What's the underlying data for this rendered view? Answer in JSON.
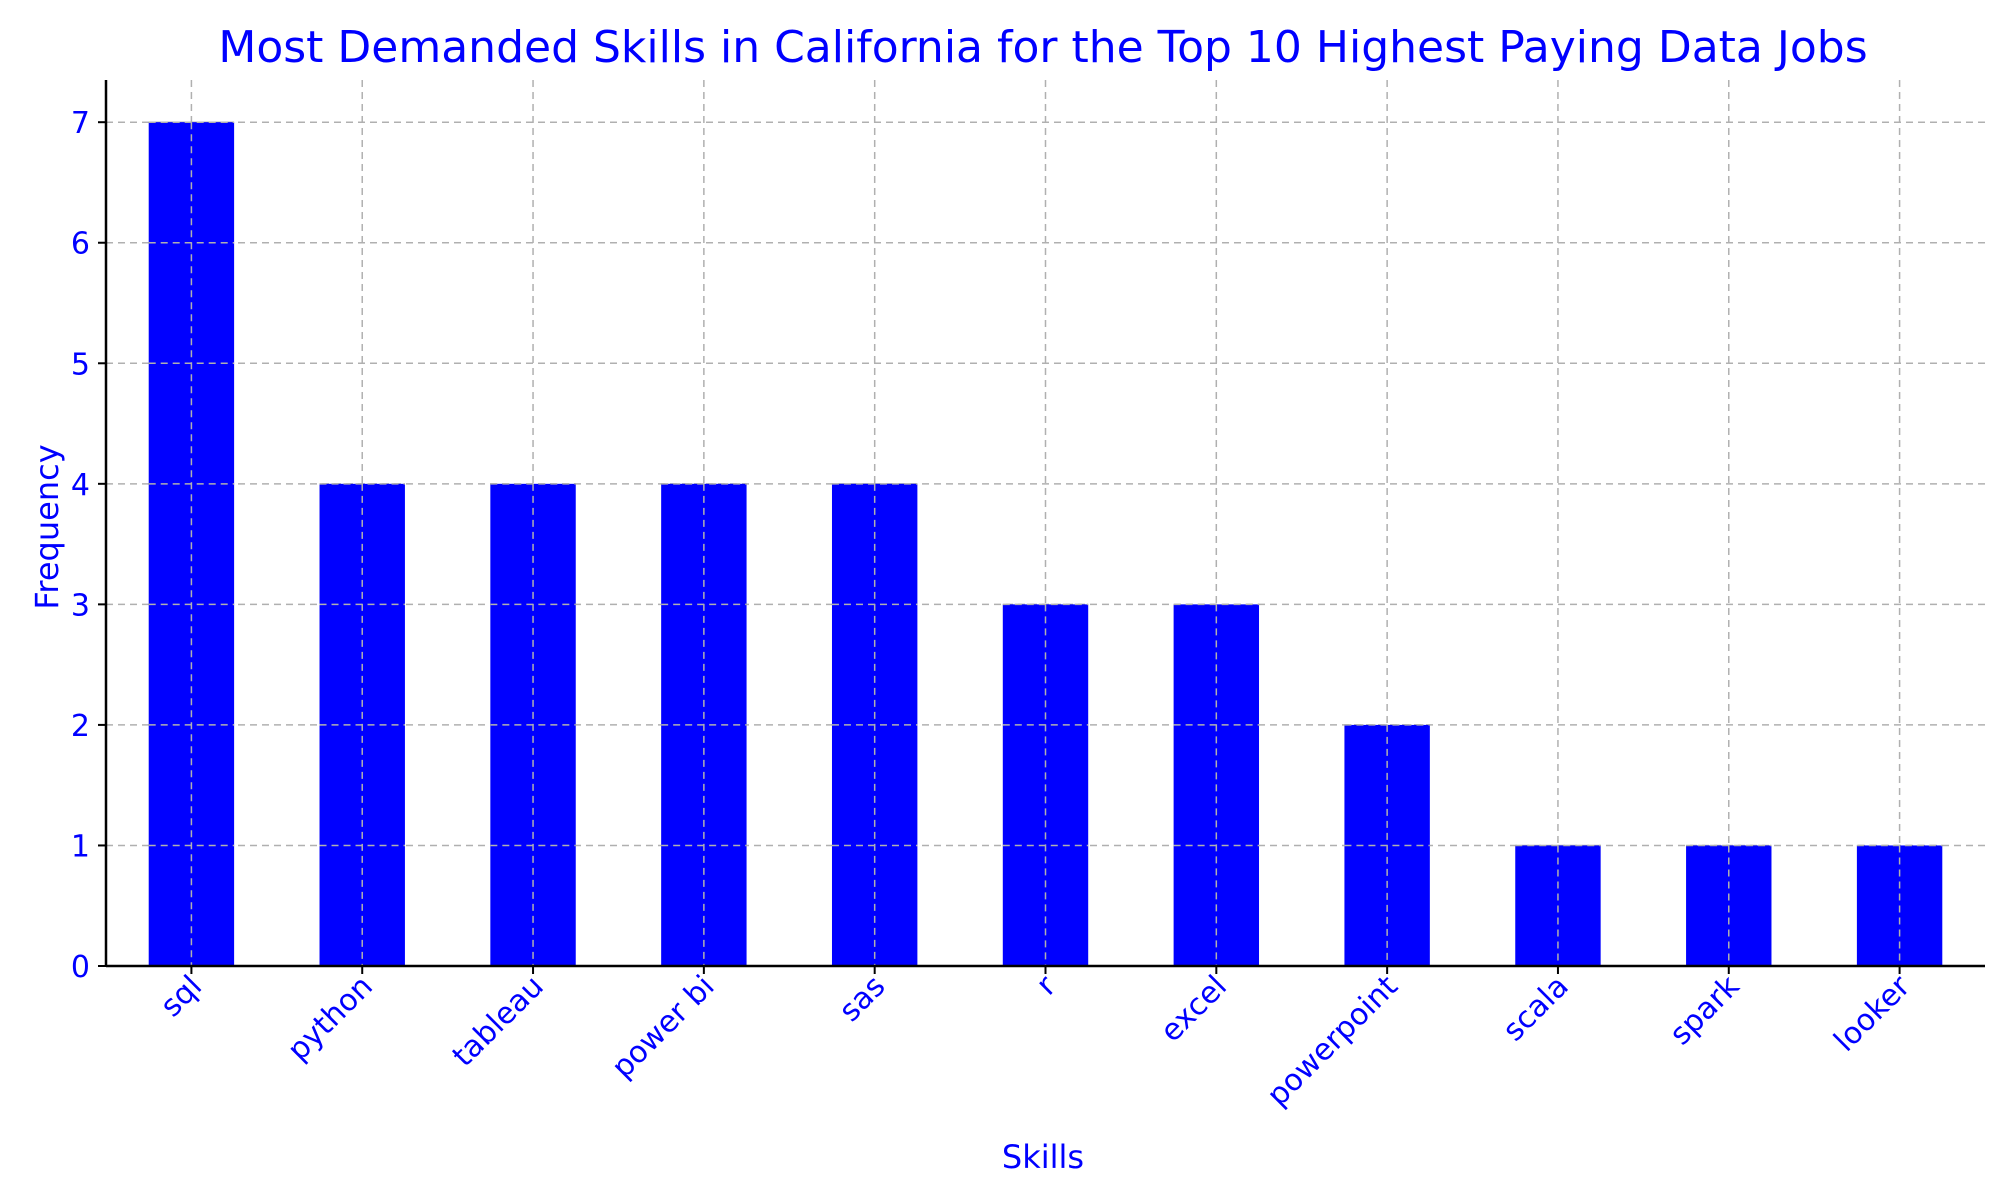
{
  "chart_data": {
    "type": "bar",
    "title": "Most Demanded Skills in California for the Top 10 Highest Paying Data Jobs",
    "xlabel": "Skills",
    "ylabel": "Frequency",
    "categories": [
      "sql",
      "python",
      "tableau",
      "power bi",
      "sas",
      "r",
      "excel",
      "powerpoint",
      "scala",
      "spark",
      "looker"
    ],
    "values": [
      7,
      4,
      4,
      4,
      4,
      3,
      3,
      2,
      1,
      1,
      1
    ],
    "yticks": [
      "0",
      "1",
      "2",
      "3",
      "4",
      "5",
      "6",
      "7"
    ],
    "ylim": [
      0,
      7.35
    ],
    "grid": true,
    "bar_color": "#0000ff",
    "text_color": "#0000ff"
  }
}
